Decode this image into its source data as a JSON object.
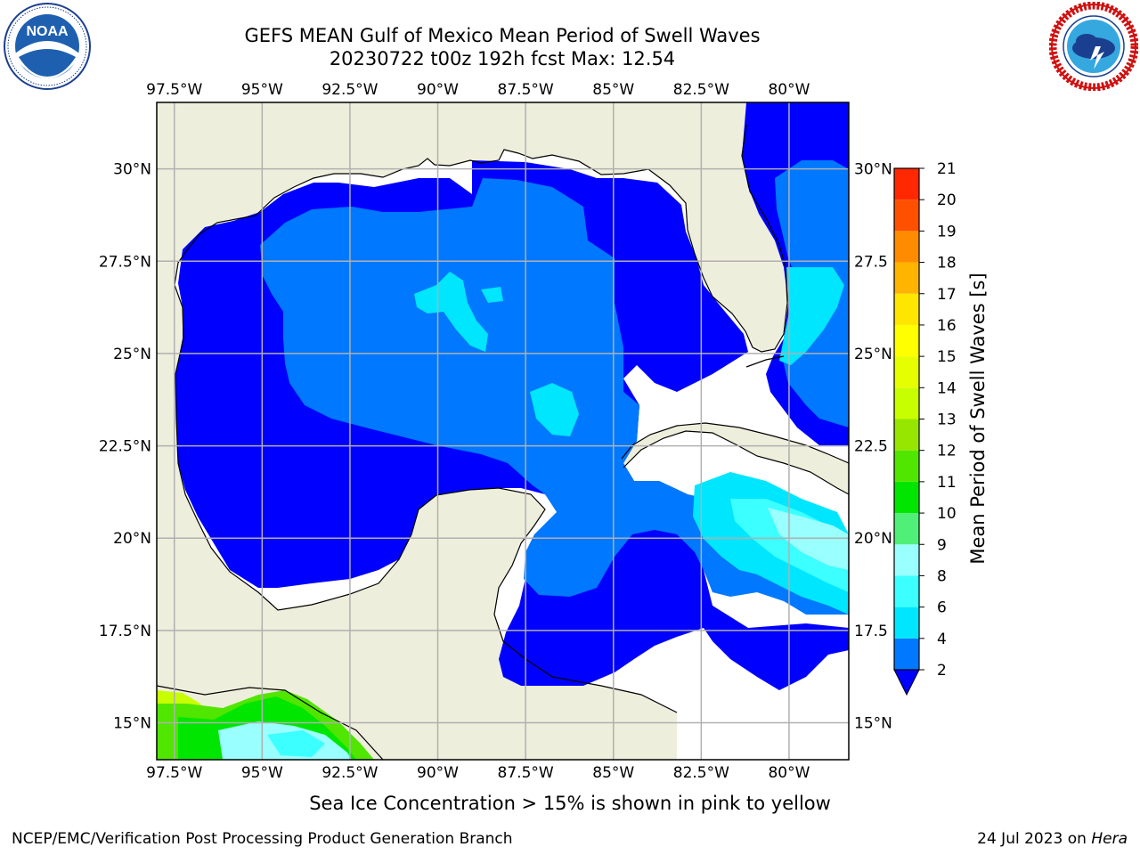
{
  "header": {
    "title": "GEFS MEAN Gulf of Mexico Mean Period of Swell Waves",
    "subtitle": "20230722 t00z 192h fcst   Max: 12.54"
  },
  "logos": {
    "left": {
      "icon": "noaa-logo-icon",
      "text": "NOAA",
      "ring_text": "NATIONAL OCEANIC AND ATMOSPHERIC ADMINISTRATION · U.S. DEPARTMENT OF COMMERCE"
    },
    "right": {
      "icon": "nws-logo-icon",
      "ring_text": "NATIONAL WEATHER SERVICE"
    }
  },
  "map": {
    "lon_range": [
      -98.0,
      -78.3
    ],
    "lat_range": [
      14.0,
      31.8
    ],
    "lon_ticks": [
      {
        "value": -97.5,
        "label": "97.5°W"
      },
      {
        "value": -95,
        "label": "95°W"
      },
      {
        "value": -92.5,
        "label": "92.5°W"
      },
      {
        "value": -90,
        "label": "90°W"
      },
      {
        "value": -87.5,
        "label": "87.5°W"
      },
      {
        "value": -85,
        "label": "85°W"
      },
      {
        "value": -82.5,
        "label": "82.5°W"
      },
      {
        "value": -80,
        "label": "80°W"
      }
    ],
    "lat_ticks_left": [
      {
        "value": 30,
        "label": "30°N"
      },
      {
        "value": 27.5,
        "label": "27.5°N"
      },
      {
        "value": 25,
        "label": "25°N"
      },
      {
        "value": 22.5,
        "label": "22.5°N"
      },
      {
        "value": 20,
        "label": "20°N"
      },
      {
        "value": 17.5,
        "label": "17.5°N"
      },
      {
        "value": 15,
        "label": "15°N"
      }
    ],
    "lat_ticks_right": [
      {
        "value": 30,
        "label": "30°N"
      },
      {
        "value": 27.5,
        "label": "27.5"
      },
      {
        "value": 25,
        "label": "25°N"
      },
      {
        "value": 22.5,
        "label": "22.5"
      },
      {
        "value": 20,
        "label": "20°N"
      },
      {
        "value": 17.5,
        "label": "17.5"
      },
      {
        "value": 15,
        "label": "15°N"
      }
    ],
    "colors": {
      "land": "#eeeedc",
      "grid": "#b0b0b0",
      "coast": "#000000",
      "no_data": "#ffffff"
    }
  },
  "colorbar": {
    "label": "Mean Period of Swell Waves [s]",
    "levels": [
      2,
      4,
      6,
      8,
      9,
      10,
      11,
      12,
      13,
      14,
      15,
      16,
      17,
      18,
      19,
      20,
      21
    ],
    "tick_labels": [
      "2",
      "4",
      "6",
      "8",
      "9",
      "10",
      "11",
      "12",
      "13",
      "14",
      "15",
      "16",
      "17",
      "18",
      "19",
      "20",
      "21"
    ],
    "colors": [
      "#0078ff",
      "#00e6ff",
      "#3cffff",
      "#99ffff",
      "#50f078",
      "#00e600",
      "#50e600",
      "#96e600",
      "#c8ff00",
      "#e6ff00",
      "#ffff00",
      "#ffe600",
      "#ffb400",
      "#ff8c00",
      "#ff5000",
      "#ff2800",
      "#ff0000"
    ],
    "under_color": "#0000ff"
  },
  "caption": "Sea Ice Concentration > 15% is shown in pink to yellow",
  "footer": {
    "left": "NCEP/EMC/Verification Post Processing Product Generation Branch",
    "right_prefix": "24 Jul 2023 on ",
    "right_host": "Hera"
  }
}
